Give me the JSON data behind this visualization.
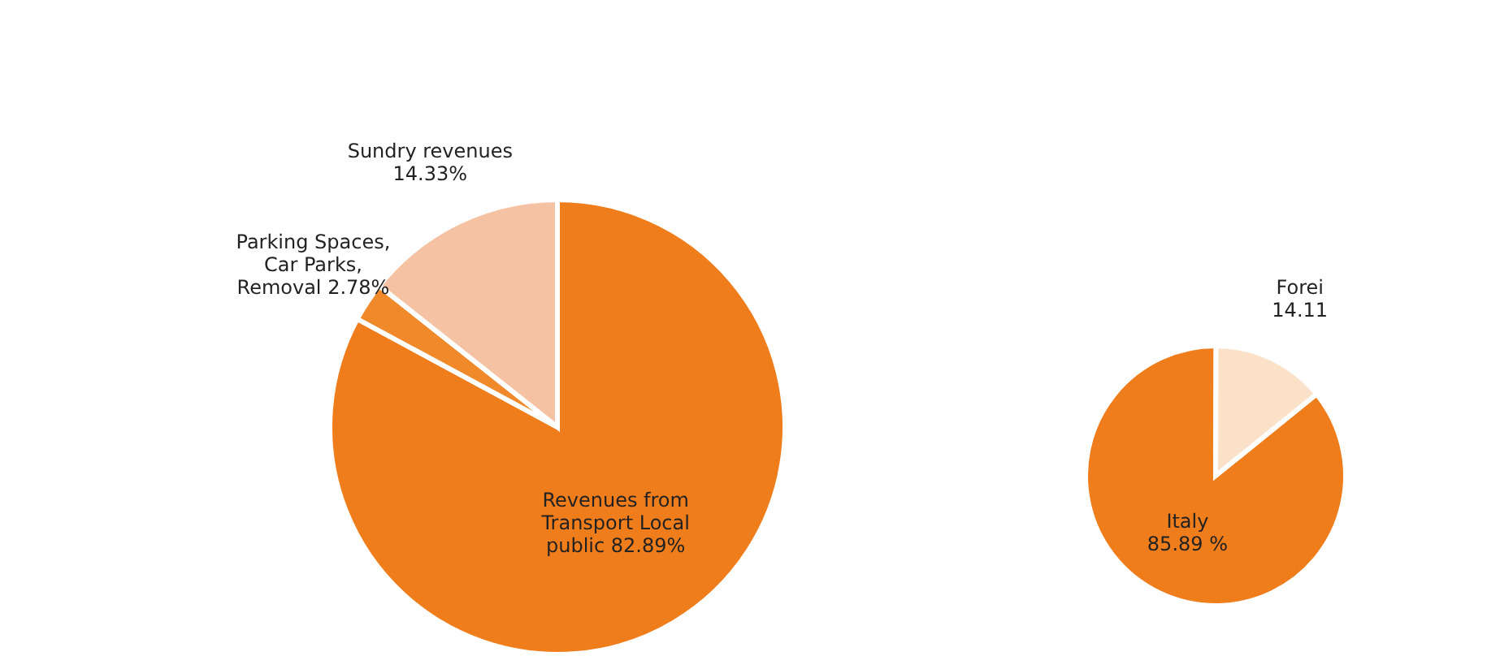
{
  "chart_data": [
    {
      "type": "pie",
      "categories": [
        "Revenues from Transport Local public",
        "Parking Spaces, Car Parks, Removal",
        "Sundry revenues"
      ],
      "values": [
        82.89,
        2.78,
        14.33
      ],
      "value_labels": [
        "82.89%",
        "2.78%",
        "14.33%"
      ],
      "colors": [
        "#f07d1c",
        "#f0892a",
        "#f5c3a4"
      ]
    },
    {
      "type": "pie",
      "categories": [
        "Italy",
        "Forei"
      ],
      "values": [
        85.89,
        14.11
      ],
      "value_labels": [
        "85.89 %",
        "14.11"
      ],
      "colors": [
        "#f07d1c",
        "#fbe1c8"
      ]
    }
  ]
}
